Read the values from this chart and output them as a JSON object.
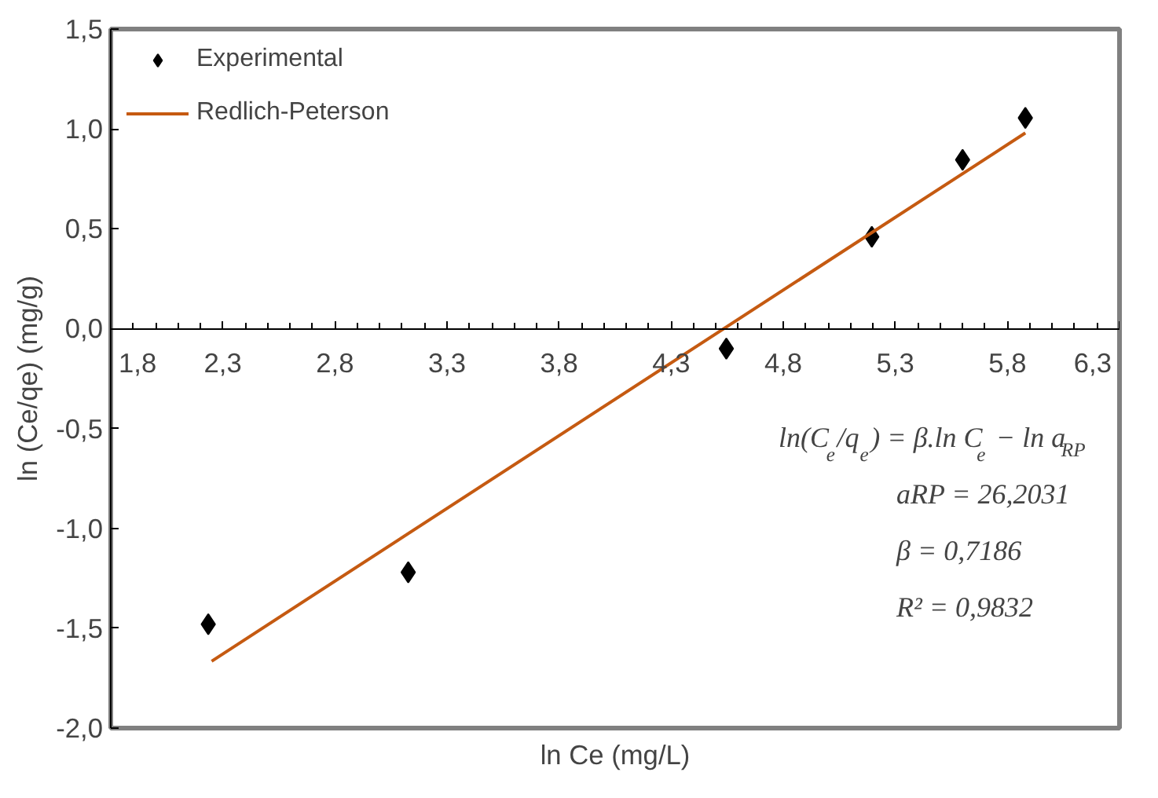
{
  "chart_data": {
    "type": "scatter",
    "xlabel": "ln Ce (mg/L)",
    "ylabel": "ln (Ce/qe) (mg/g)",
    "series": [
      {
        "name": "Experimental",
        "color": "#000000",
        "marker": "diamond",
        "x": [
          2.235,
          3.127,
          4.546,
          5.195,
          5.6,
          5.88
        ],
        "values": [
          -1.48,
          -1.22,
          -0.1,
          0.46,
          0.845,
          1.055
        ]
      },
      {
        "name": "Redlich-Peterson",
        "type": "line",
        "color": "#c55a11",
        "marker": "none",
        "line_style": "solid",
        "x": [
          2.25,
          5.88
        ],
        "values": [
          -1.665,
          0.98
        ]
      }
    ],
    "xlim": [
      1.8,
      6.3
    ],
    "ylim": [
      -2.0,
      1.5
    ],
    "xticks": [
      {
        "value": 1.8,
        "label": "1,8"
      },
      {
        "value": 2.3,
        "label": "2,3"
      },
      {
        "value": 2.8,
        "label": "2,8"
      },
      {
        "value": 3.3,
        "label": "3,3"
      },
      {
        "value": 3.8,
        "label": "3,8"
      },
      {
        "value": 4.3,
        "label": "4,3"
      },
      {
        "value": 4.8,
        "label": "4,8"
      },
      {
        "value": 5.3,
        "label": "5,3"
      },
      {
        "value": 5.8,
        "label": "5,8"
      },
      {
        "value": 6.3,
        "label": "6,3"
      }
    ],
    "yticks": [
      {
        "value": -2.0,
        "label": "-2,0"
      },
      {
        "value": -1.5,
        "label": "-1,5"
      },
      {
        "value": -1.0,
        "label": "-1,0"
      },
      {
        "value": -0.5,
        "label": "-0,5"
      },
      {
        "value": 0.0,
        "label": "0,0"
      },
      {
        "value": 0.5,
        "label": "0,5"
      },
      {
        "value": 1.0,
        "label": "1,0"
      },
      {
        "value": 1.5,
        "label": "1,5"
      }
    ],
    "grid": false,
    "legend": "top left",
    "annotations": [
      "ln(C$_{e}$/q$_{e}$) = β.ln C$_{e}$ − ln a$_{RP}$",
      "aRP = 26,2031",
      "β = 0,7186",
      "R² = 0,9832"
    ]
  }
}
